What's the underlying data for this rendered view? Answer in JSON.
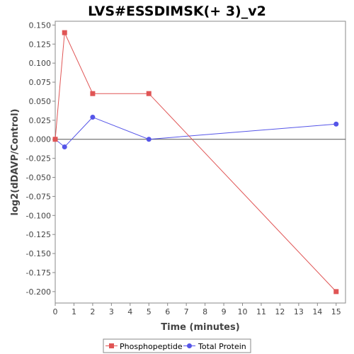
{
  "chart_data": {
    "type": "line",
    "title": "LVS#ESSDIMSK(+ 3)_v2",
    "xlabel": "Time (minutes)",
    "ylabel": "log2(dDAVP/Control)",
    "xlim": [
      0,
      15.5
    ],
    "ylim": [
      -0.215,
      0.155
    ],
    "x_ticks": [
      0,
      1,
      2,
      3,
      4,
      5,
      6,
      7,
      8,
      9,
      10,
      11,
      12,
      13,
      14,
      15
    ],
    "y_ticks": [
      0.15,
      0.125,
      0.1,
      0.075,
      0.05,
      0.025,
      0.0,
      -0.025,
      -0.05,
      -0.075,
      -0.1,
      -0.125,
      -0.15,
      -0.175,
      -0.2
    ],
    "y_tick_labels": [
      "0.150",
      "0.125",
      "0.100",
      "0.075",
      "0.050",
      "0.025",
      "0.000",
      "-0.025",
      "-0.050",
      "-0.075",
      "-0.100",
      "-0.125",
      "-0.150",
      "-0.175",
      "-0.200"
    ],
    "zero_line": true,
    "grid": false,
    "legend_position": "bottom",
    "series": [
      {
        "name": "Phosphopeptide",
        "color": "#e05555",
        "marker": "square",
        "x": [
          0,
          0.5,
          2,
          5,
          15
        ],
        "y": [
          0.0,
          0.14,
          0.06,
          0.06,
          -0.2
        ]
      },
      {
        "name": "Total Protein",
        "color": "#5555e8",
        "marker": "circle",
        "x": [
          0,
          0.5,
          2,
          5,
          15
        ],
        "y": [
          0.0,
          -0.01,
          0.029,
          0.0,
          0.02
        ]
      }
    ]
  }
}
